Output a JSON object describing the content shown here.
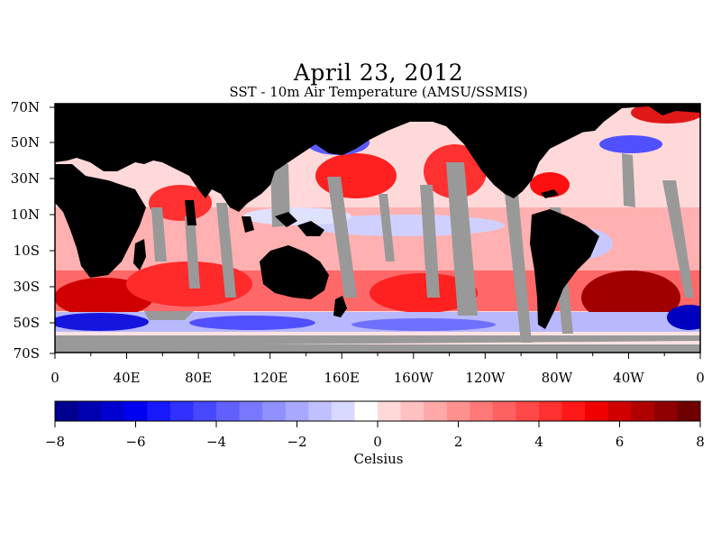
{
  "title": "April 23, 2012",
  "subtitle": "SST - 10m Air Temperature (AMSU/SSMIS)",
  "map": {
    "lat_labels": [
      "70N",
      "50N",
      "30N",
      "10N",
      "10S",
      "30S",
      "50S",
      "70S"
    ],
    "lon_labels": [
      "0",
      "40E",
      "80E",
      "120E",
      "160E",
      "160W",
      "120W",
      "80W",
      "40W",
      "0"
    ],
    "colors": {
      "land": "#000000",
      "no_data": "#999999",
      "ocean_warm": "#ff3030",
      "ocean_cool": "#3a3aff",
      "ocean_neutral": "#ffe4e4"
    }
  },
  "colorbar": {
    "title": "Celsius",
    "tick_labels": [
      "-8",
      "-6",
      "-4",
      "-2",
      "0",
      "2",
      "4",
      "6",
      "8"
    ],
    "colors": [
      "#000090",
      "#0000b0",
      "#0000d0",
      "#0000f0",
      "#1818ff",
      "#3030ff",
      "#4848ff",
      "#6060ff",
      "#7878ff",
      "#9090ff",
      "#a8a8ff",
      "#c0c0ff",
      "#d8d8ff",
      "#ffffff",
      "#ffd8d8",
      "#ffc0c0",
      "#ffa8a8",
      "#ff9090",
      "#ff7878",
      "#ff6060",
      "#ff4848",
      "#ff3030",
      "#ff1818",
      "#f00000",
      "#d00000",
      "#b00000",
      "#900000",
      "#700000"
    ]
  }
}
